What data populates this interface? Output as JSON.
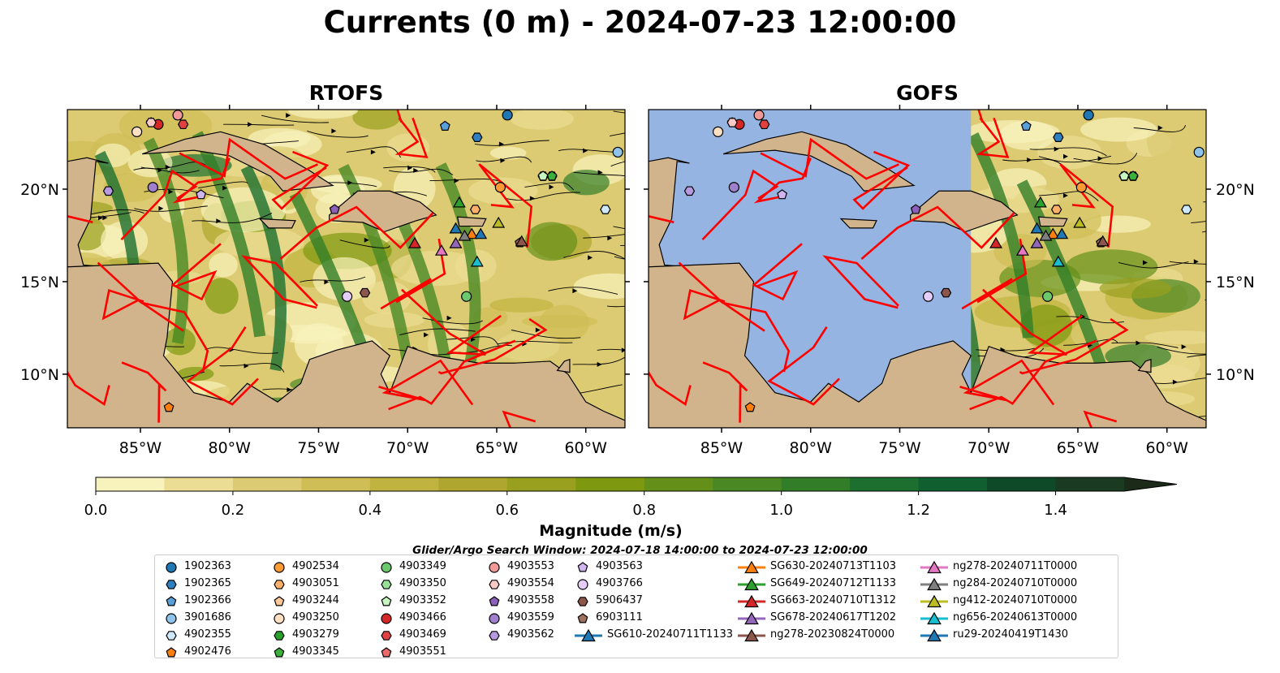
{
  "title": "Currents (0 m) - 2024-07-23 12:00:00",
  "chart_data": {
    "type": "map",
    "panels": [
      {
        "title": "RTOFS"
      },
      {
        "title": "GOFS",
        "no_data_west_of_lon": -71
      }
    ],
    "lon_range": [
      -89.1,
      -57.8
    ],
    "lat_range": [
      7.1,
      24.3
    ],
    "lon_ticks": [
      {
        "v": -85,
        "label": "85°W"
      },
      {
        "v": -80,
        "label": "80°W"
      },
      {
        "v": -75,
        "label": "75°W"
      },
      {
        "v": -70,
        "label": "70°W"
      },
      {
        "v": -65,
        "label": "65°W"
      },
      {
        "v": -60,
        "label": "60°W"
      }
    ],
    "lat_ticks": [
      {
        "v": 20,
        "label": "20°N"
      },
      {
        "v": 15,
        "label": "15°N"
      },
      {
        "v": 10,
        "label": "10°N"
      }
    ],
    "colorbar": {
      "label": "Magnitude (m/s)",
      "min": 0,
      "max": 1.5,
      "step": 0.1,
      "extend": "max",
      "ticks": [
        {
          "v": 0,
          "label": "0.0"
        },
        {
          "v": 0.2,
          "label": "0.2"
        },
        {
          "v": 0.4,
          "label": "0.4"
        },
        {
          "v": 0.6,
          "label": "0.6"
        },
        {
          "v": 0.8,
          "label": "0.8"
        },
        {
          "v": 1.0,
          "label": "1.0"
        },
        {
          "v": 1.2,
          "label": "1.2"
        },
        {
          "v": 1.4,
          "label": "1.4"
        }
      ],
      "colors": [
        "#f8f2bc",
        "#ebdd93",
        "#dccb72",
        "#cfbd55",
        "#c1b33f",
        "#aea62e",
        "#99a01f",
        "#7e9810",
        "#64901a",
        "#4a8824",
        "#327e28",
        "#1c6f2f",
        "#0f5f2f",
        "#0f4a28",
        "#1a3b21"
      ],
      "extend_color": "#1b2a19"
    },
    "markers": [
      {
        "id": "1902363",
        "shape": "circle",
        "color": "#1f77b4",
        "lon": -64.4,
        "lat": 24.0
      },
      {
        "id": "1902365",
        "shape": "hexagon",
        "color": "#2e7fbf",
        "lon": -66.1,
        "lat": 22.8
      },
      {
        "id": "1902366",
        "shape": "pentagon",
        "color": "#5aa0d8",
        "lon": -67.9,
        "lat": 23.4
      },
      {
        "id": "3901686",
        "shape": "circle",
        "color": "#8fc3ea",
        "lon": -58.2,
        "lat": 22.0
      },
      {
        "id": "4902355",
        "shape": "hexagon",
        "color": "#cfe8fa",
        "lon": -58.9,
        "lat": 18.9
      },
      {
        "id": "4902476",
        "shape": "pentagon",
        "color": "#ff7f0e",
        "lon": -83.4,
        "lat": 8.2
      },
      {
        "id": "4902534",
        "shape": "circle",
        "color": "#ff9a35",
        "lon": -64.8,
        "lat": 20.1
      },
      {
        "id": "4903051",
        "shape": "hexagon",
        "color": "#ffb06a",
        "lon": -66.2,
        "lat": 18.9
      },
      {
        "id": "4903244",
        "shape": "pentagon",
        "color": "#ffc899",
        "lon": -84.4,
        "lat": 23.6
      },
      {
        "id": "4903250",
        "shape": "circle",
        "color": "#ffe0c2",
        "lon": -85.2,
        "lat": 23.1
      },
      {
        "id": "4903279",
        "shape": "hexagon",
        "color": "#2ca02c",
        "lon": -61.9,
        "lat": 20.7
      },
      {
        "id": "4903345",
        "shape": "pentagon",
        "color": "#3cb03c",
        "lon": -61.9,
        "lat": 20.7
      },
      {
        "id": "4903349",
        "shape": "circle",
        "color": "#6cc86c",
        "lon": -66.7,
        "lat": 14.2
      },
      {
        "id": "4903350",
        "shape": "hexagon",
        "color": "#98e098",
        "lon": -62.4,
        "lat": 20.7
      },
      {
        "id": "4903352",
        "shape": "pentagon",
        "color": "#c6f5c0",
        "lon": -62.4,
        "lat": 20.7
      },
      {
        "id": "4903466",
        "shape": "circle",
        "color": "#d62728",
        "lon": -84.0,
        "lat": 23.5
      },
      {
        "id": "4903469",
        "shape": "hexagon",
        "color": "#e04040",
        "lon": -82.6,
        "lat": 23.5
      },
      {
        "id": "4903551",
        "shape": "pentagon",
        "color": "#ea6a6a",
        "lon": -82.9,
        "lat": 24.0
      },
      {
        "id": "4903553",
        "shape": "circle",
        "color": "#f29a9a",
        "lon": -82.9,
        "lat": 24.0
      },
      {
        "id": "4903554",
        "shape": "hexagon",
        "color": "#fbc8c8",
        "lon": -84.4,
        "lat": 23.6
      },
      {
        "id": "4903558",
        "shape": "pentagon",
        "color": "#8c5fb8",
        "lon": -74.1,
        "lat": 18.9
      },
      {
        "id": "4903559",
        "shape": "circle",
        "color": "#a07fcc",
        "lon": -84.3,
        "lat": 20.1
      },
      {
        "id": "4903562",
        "shape": "hexagon",
        "color": "#b89ae0",
        "lon": -86.8,
        "lat": 19.9
      },
      {
        "id": "4903563",
        "shape": "pentagon",
        "color": "#d0b5ef",
        "lon": -81.6,
        "lat": 19.7
      },
      {
        "id": "4903766",
        "shape": "circle",
        "color": "#e4cdf7",
        "lon": -73.4,
        "lat": 14.2
      },
      {
        "id": "5906437",
        "shape": "hexagon",
        "color": "#8c564b",
        "lon": -72.4,
        "lat": 14.4
      },
      {
        "id": "6903111",
        "shape": "pentagon",
        "color": "#a0705f",
        "lon": -63.7,
        "lat": 17.1
      },
      {
        "id": "SG610-20240711T1133",
        "shape": "triangle",
        "color": "#1f77b4",
        "lon": -67.3,
        "lat": 17.9
      },
      {
        "id": "SG630-20240713T1103",
        "shape": "triangle",
        "color": "#ff7f0e",
        "lon": -66.4,
        "lat": 17.6
      },
      {
        "id": "SG649-20240712T1133",
        "shape": "triangle",
        "color": "#2ca02c",
        "lon": -67.1,
        "lat": 19.3
      },
      {
        "id": "SG663-20240710T1312",
        "shape": "triangle",
        "color": "#d62728",
        "lon": -69.6,
        "lat": 17.1
      },
      {
        "id": "SG678-20240617T1202",
        "shape": "triangle",
        "color": "#9467bd",
        "lon": -67.3,
        "lat": 17.1
      },
      {
        "id": "ng278-20230824T0000",
        "shape": "triangle",
        "color": "#8c564b",
        "lon": -63.6,
        "lat": 17.2
      },
      {
        "id": "ng278-20240711T0000",
        "shape": "triangle",
        "color": "#e377c2",
        "lon": -68.1,
        "lat": 16.7
      },
      {
        "id": "ng284-20240710T0000",
        "shape": "triangle",
        "color": "#7f7f7f",
        "lon": -66.8,
        "lat": 17.5
      },
      {
        "id": "ng412-20240710T0000",
        "shape": "triangle",
        "color": "#bcbd22",
        "lon": -64.9,
        "lat": 18.2
      },
      {
        "id": "ng656-20240613T0000",
        "shape": "triangle",
        "color": "#17becf",
        "lon": -66.1,
        "lat": 16.1
      },
      {
        "id": "ru29-20240419T1430",
        "shape": "triangle",
        "color": "#1f77b4",
        "lon": -65.9,
        "lat": 17.6
      }
    ]
  },
  "search_window": "Glider/Argo Search Window: 2024-07-18 14:00:00 to 2024-07-23 12:00:00"
}
